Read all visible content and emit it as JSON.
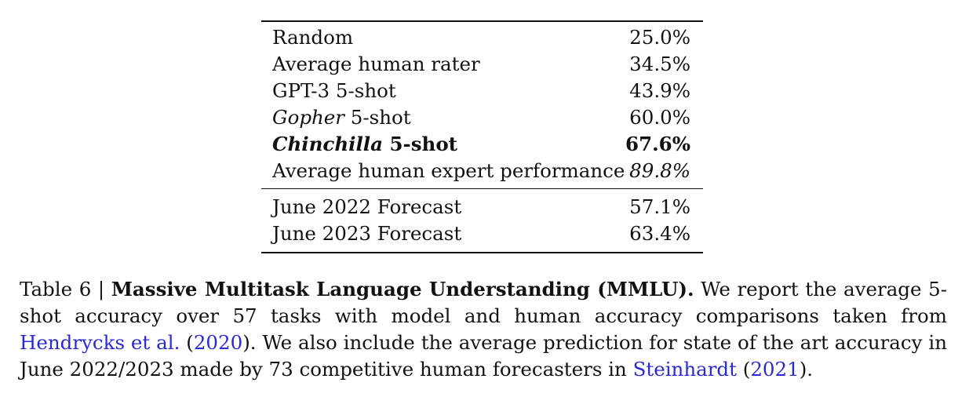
{
  "table": {
    "top_rows": [
      {
        "name": "Random",
        "name_suffix": "",
        "value": "25.0%",
        "name_style": "normal",
        "value_style": "normal"
      },
      {
        "name": "Average human rater",
        "name_suffix": "",
        "value": "34.5%",
        "name_style": "normal",
        "value_style": "normal"
      },
      {
        "name": "GPT-3 5-shot",
        "name_suffix": "",
        "value": "43.9%",
        "name_style": "normal",
        "value_style": "normal"
      },
      {
        "name": "Gopher",
        "name_suffix": " 5-shot",
        "value": "60.0%",
        "name_style": "italic-model",
        "value_style": "normal"
      },
      {
        "name": "Chinchilla",
        "name_suffix": " 5-shot",
        "value": "67.6%",
        "name_style": "bold-italic-model",
        "value_style": "bold"
      },
      {
        "name": "Average human expert performance",
        "name_suffix": "",
        "value": "89.8%",
        "name_style": "normal",
        "value_style": "italic"
      }
    ],
    "bottom_rows": [
      {
        "name": "June 2022 Forecast",
        "name_suffix": "",
        "value": "57.1%",
        "name_style": "normal",
        "value_style": "normal"
      },
      {
        "name": "June 2023 Forecast",
        "name_suffix": "",
        "value": "63.4%",
        "name_style": "normal",
        "value_style": "normal"
      }
    ]
  },
  "caption": {
    "label": "Table 6 | ",
    "bold_title": "Massive Multitask Language Understanding (MMLU).",
    "text_1": " We report the average 5-shot accuracy over 57 tasks with model and human accuracy comparisons taken from ",
    "cite_1_author": "Hendrycks et al.",
    "cite_1_open": " (",
    "cite_1_year": "2020",
    "text_2": "). We also include the average prediction for state of the art accuracy in June 2022/2023 made by 73 competitive human forecasters in ",
    "cite_2_author": "Steinhardt",
    "cite_2_open": " (",
    "cite_2_year": "2021",
    "text_3": ")."
  }
}
